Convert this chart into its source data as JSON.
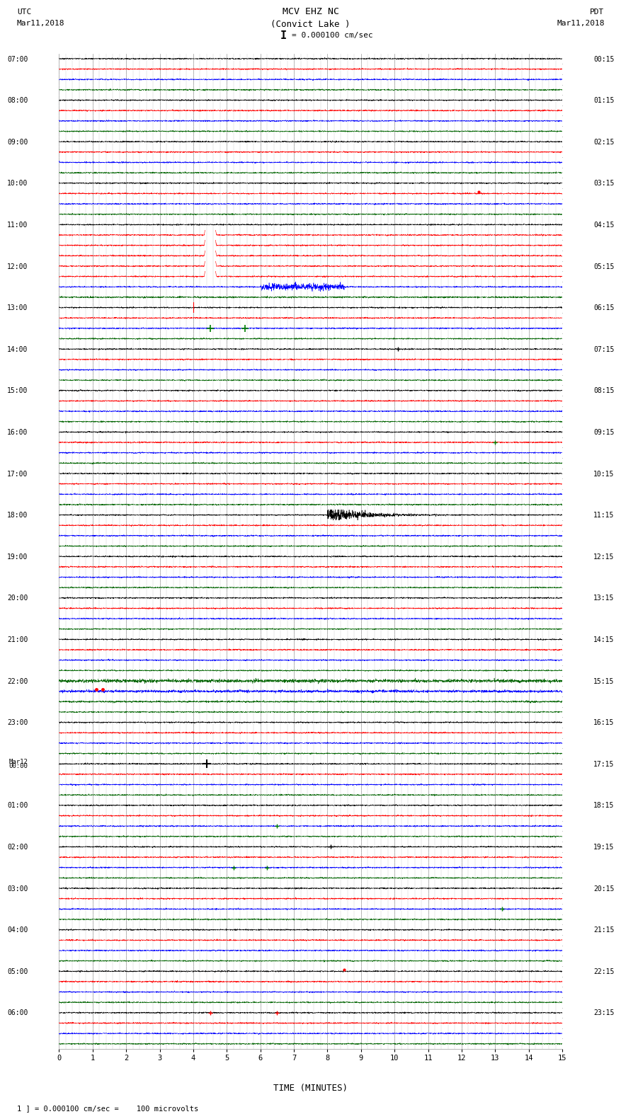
{
  "title_line1": "MCV EHZ NC",
  "title_line2": "(Convict Lake )",
  "title_line3": "I = 0.000100 cm/sec",
  "left_header_line1": "UTC",
  "left_header_line2": "Mar11,2018",
  "right_header_line1": "PDT",
  "right_header_line2": "Mar11,2018",
  "footer_text": "1 ] = 0.000100 cm/sec =    100 microvolts",
  "xlabel": "TIME (MINUTES)",
  "xlim": [
    0,
    15
  ],
  "bg_color": "#ffffff",
  "grid_major_color": "#999999",
  "grid_minor_color": "#cccccc",
  "trace_noise_scale": 0.06,
  "left_labels": [
    "07:00",
    "",
    "",
    "",
    "08:00",
    "",
    "",
    "",
    "09:00",
    "",
    "",
    "",
    "10:00",
    "",
    "",
    "",
    "11:00",
    "",
    "",
    "",
    "12:00",
    "",
    "",
    "",
    "13:00",
    "",
    "",
    "",
    "14:00",
    "",
    "",
    "",
    "15:00",
    "",
    "",
    "",
    "16:00",
    "",
    "",
    "",
    "17:00",
    "",
    "",
    "",
    "18:00",
    "",
    "",
    "",
    "19:00",
    "",
    "",
    "",
    "20:00",
    "",
    "",
    "",
    "21:00",
    "",
    "",
    "",
    "22:00",
    "",
    "",
    "",
    "23:00",
    "",
    "",
    "",
    "Mar12_00:00",
    "",
    "",
    "",
    "01:00",
    "",
    "",
    "",
    "02:00",
    "",
    "",
    "",
    "03:00",
    "",
    "",
    "",
    "04:00",
    "",
    "",
    "",
    "05:00",
    "",
    "",
    "",
    "06:00",
    "",
    "",
    ""
  ],
  "right_labels": [
    "00:15",
    "",
    "",
    "",
    "01:15",
    "",
    "",
    "",
    "02:15",
    "",
    "",
    "",
    "03:15",
    "",
    "",
    "",
    "04:15",
    "",
    "",
    "",
    "05:15",
    "",
    "",
    "",
    "06:15",
    "",
    "",
    "",
    "07:15",
    "",
    "",
    "",
    "08:15",
    "",
    "",
    "",
    "09:15",
    "",
    "",
    "",
    "10:15",
    "",
    "",
    "",
    "11:15",
    "",
    "",
    "",
    "12:15",
    "",
    "",
    "",
    "13:15",
    "",
    "",
    "",
    "14:15",
    "",
    "",
    "",
    "15:15",
    "",
    "",
    "",
    "16:15",
    "",
    "",
    "",
    "17:15",
    "",
    "",
    "",
    "18:15",
    "",
    "",
    "",
    "19:15",
    "",
    "",
    "",
    "20:15",
    "",
    "",
    "",
    "21:15",
    "",
    "",
    "",
    "22:15",
    "",
    "",
    "",
    "23:15",
    "",
    "",
    ""
  ]
}
